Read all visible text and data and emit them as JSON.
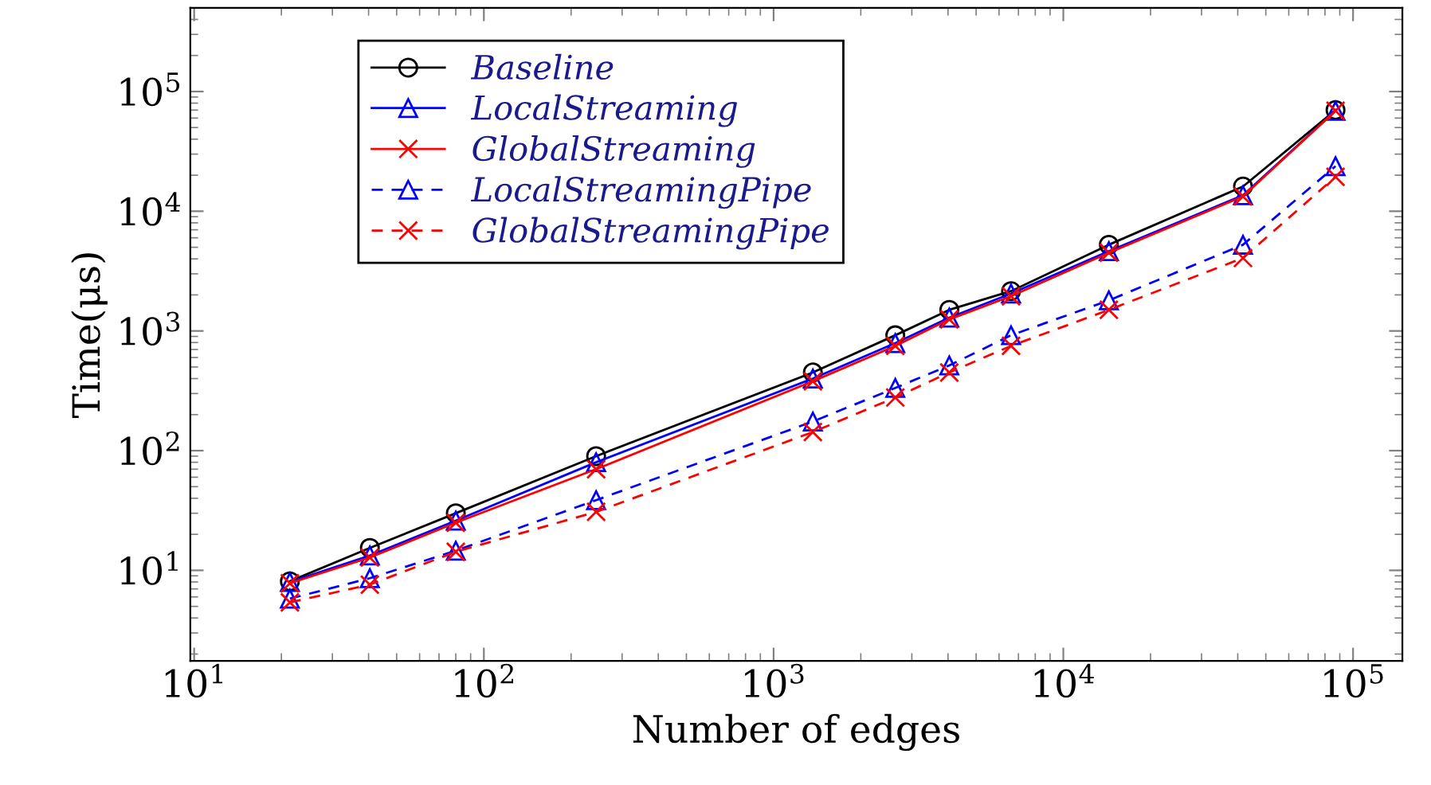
{
  "chart_data": {
    "type": "line",
    "xlabel": "Number of edges",
    "ylabel": "Time(μs)",
    "log": "xy",
    "xlim": [
      9.7,
      148000
    ],
    "ylim": [
      1.75,
      500000
    ],
    "xticks": [
      {
        "value": 10,
        "label": "10$^{1}$"
      },
      {
        "value": 100,
        "label": "10$^{2}$"
      },
      {
        "value": 1000,
        "label": "10$^{3}$"
      },
      {
        "value": 10000,
        "label": "10$^{4}$"
      },
      {
        "value": 100000,
        "label": "10$^{5}$"
      }
    ],
    "yticks": [
      {
        "value": 10,
        "label": "10$^{1}$"
      },
      {
        "value": 100,
        "label": "10$^{2}$"
      },
      {
        "value": 1000,
        "label": "10$^{3}$"
      },
      {
        "value": 10000,
        "label": "10$^{4}$"
      },
      {
        "value": 100000,
        "label": "10$^{5}$"
      }
    ],
    "x": [
      21.4,
      40.4,
      80,
      244,
      1366,
      2630,
      4040,
      6600,
      14360,
      41700,
      87000
    ],
    "grid": false,
    "legend": "top left",
    "series": [
      {
        "name": "Baseline",
        "color": "#000000",
        "marker": "circle",
        "line_style": "solid",
        "values": [
          8.1,
          15.4,
          30,
          90,
          450,
          920,
          1500,
          2150,
          5250,
          16100,
          70000
        ]
      },
      {
        "name": "LocalStreaming",
        "color": "#0000ff",
        "marker": "triangle",
        "line_style": "solid",
        "values": [
          8.0,
          13.3,
          26,
          80,
          400,
          790,
          1290,
          2050,
          4640,
          13600,
          69000
        ]
      },
      {
        "name": "GlobalStreaming",
        "color": "#ff0000",
        "marker": "cross",
        "line_style": "solid",
        "values": [
          7.8,
          12.8,
          25,
          70,
          380,
          750,
          1250,
          1950,
          4500,
          13300,
          69000
        ]
      },
      {
        "name": "LocalStreamingPipe",
        "color": "#0000ff",
        "marker": "triangle",
        "line_style": "dashed",
        "values": [
          5.8,
          8.6,
          14.6,
          38.6,
          175,
          334,
          515,
          920,
          1800,
          5250,
          23800
        ]
      },
      {
        "name": "GlobalStreamingPipe",
        "color": "#ff0000",
        "marker": "cross",
        "line_style": "dashed",
        "values": [
          5.4,
          7.6,
          14.3,
          30.8,
          143,
          278,
          450,
          750,
          1500,
          4070,
          19400
        ]
      }
    ]
  }
}
